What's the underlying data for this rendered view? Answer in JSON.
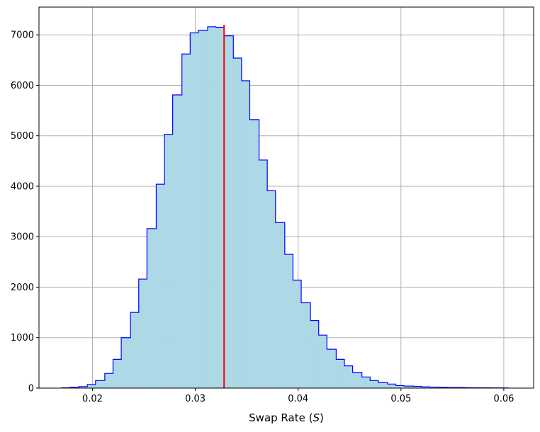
{
  "chart_data": {
    "type": "histogram",
    "xlabel_text": "Swap Rate (",
    "xlabel_symbol": "S",
    "xlabel_close": ")",
    "ylabel": "",
    "xlim": [
      0.0148,
      0.0629
    ],
    "ylim": [
      0,
      7550
    ],
    "x_ticks": [
      0.02,
      0.03,
      0.04,
      0.05,
      0.06
    ],
    "x_tick_labels": [
      "0.02",
      "0.03",
      "0.04",
      "0.05",
      "0.06"
    ],
    "y_ticks": [
      0,
      1000,
      2000,
      3000,
      4000,
      5000,
      6000,
      7000
    ],
    "y_tick_labels": [
      "0",
      "1000",
      "2000",
      "3000",
      "4000",
      "5000",
      "6000",
      "7000"
    ],
    "grid": true,
    "bin_edges": [
      0.017,
      0.0178,
      0.0187,
      0.0195,
      0.0203,
      0.0212,
      0.022,
      0.0228,
      0.0237,
      0.0245,
      0.0253,
      0.0262,
      0.027,
      0.0278,
      0.0287,
      0.0295,
      0.0303,
      0.0312,
      0.032,
      0.0328,
      0.0337,
      0.0345,
      0.0353,
      0.0362,
      0.037,
      0.0378,
      0.0387,
      0.0395,
      0.0403,
      0.0412,
      0.042,
      0.0428,
      0.0437,
      0.0445,
      0.0453,
      0.0462,
      0.047,
      0.0478,
      0.0487,
      0.0495,
      0.0503,
      0.0512,
      0.052,
      0.0528,
      0.0537,
      0.0545,
      0.0553,
      0.0562,
      0.057,
      0.0578,
      0.0587,
      0.0595,
      0.0604
    ],
    "counts": [
      5,
      15,
      30,
      70,
      150,
      290,
      570,
      1000,
      1500,
      2160,
      3160,
      4040,
      5030,
      5810,
      6620,
      7040,
      7090,
      7160,
      7150,
      6980,
      6540,
      6090,
      5320,
      4520,
      3910,
      3280,
      2650,
      2140,
      1690,
      1340,
      1050,
      770,
      570,
      440,
      310,
      220,
      150,
      110,
      80,
      50,
      40,
      35,
      25,
      20,
      15,
      10,
      10,
      8,
      5,
      5,
      3,
      3
    ],
    "fill_color": "#add8e6",
    "edge_color": "#0000ff",
    "marker_line": {
      "x": 0.0328,
      "y_top": 7200,
      "color": "#ff0000"
    },
    "grid_color": "#b0b0b0"
  }
}
